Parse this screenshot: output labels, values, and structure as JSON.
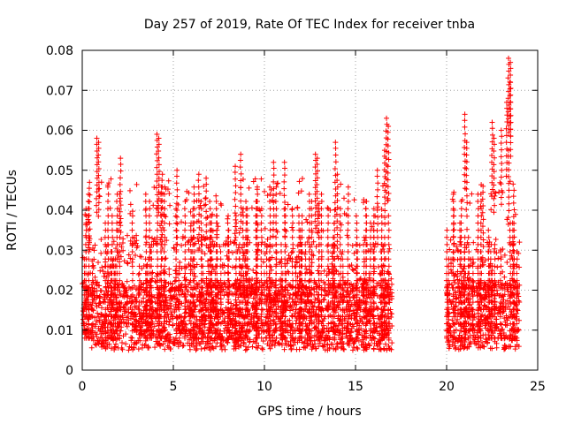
{
  "chart_data": {
    "type": "scatter",
    "title": "Day 257 of 2019, Rate Of TEC Index for receiver tnba",
    "xlabel": "GPS time / hours",
    "ylabel": "ROTI / TECUs",
    "xlim": [
      0,
      25
    ],
    "ylim": [
      0,
      0.08
    ],
    "x_ticks": [
      0,
      5,
      10,
      15,
      20,
      25
    ],
    "x_tick_labels": [
      "0",
      "5",
      "10",
      "15",
      "20",
      "25"
    ],
    "y_ticks": [
      0,
      0.01,
      0.02,
      0.03,
      0.04,
      0.05,
      0.06,
      0.07,
      0.08
    ],
    "y_tick_labels": [
      "0",
      "0.01",
      "0.02",
      "0.03",
      "0.04",
      "0.05",
      "0.06",
      "0.07",
      "0.08"
    ],
    "grid": true,
    "marker": "+",
    "marker_color": "#ff0000",
    "series": [
      {
        "name": "ROTI",
        "segments": [
          {
            "x_start": 0.0,
            "x_end": 17.0,
            "base_low": 0.005,
            "base_high": 0.022
          },
          {
            "x_start": 20.0,
            "x_end": 24.0,
            "base_low": 0.005,
            "base_high": 0.022
          }
        ],
        "spikes": [
          {
            "x": 0.8,
            "y": 0.058
          },
          {
            "x": 0.9,
            "y": 0.057
          },
          {
            "x": 0.4,
            "y": 0.047
          },
          {
            "x": 2.1,
            "y": 0.053
          },
          {
            "x": 4.1,
            "y": 0.059
          },
          {
            "x": 4.2,
            "y": 0.058
          },
          {
            "x": 4.4,
            "y": 0.049
          },
          {
            "x": 5.2,
            "y": 0.05
          },
          {
            "x": 6.4,
            "y": 0.049
          },
          {
            "x": 6.8,
            "y": 0.048
          },
          {
            "x": 8.4,
            "y": 0.051
          },
          {
            "x": 8.7,
            "y": 0.054
          },
          {
            "x": 10.5,
            "y": 0.052
          },
          {
            "x": 11.1,
            "y": 0.052
          },
          {
            "x": 12.8,
            "y": 0.054
          },
          {
            "x": 12.9,
            "y": 0.053
          },
          {
            "x": 13.9,
            "y": 0.057
          },
          {
            "x": 14.0,
            "y": 0.049
          },
          {
            "x": 16.2,
            "y": 0.05
          },
          {
            "x": 16.7,
            "y": 0.063
          },
          {
            "x": 16.8,
            "y": 0.061
          },
          {
            "x": 16.6,
            "y": 0.055
          },
          {
            "x": 20.4,
            "y": 0.04
          },
          {
            "x": 21.0,
            "y": 0.064
          },
          {
            "x": 21.1,
            "y": 0.057
          },
          {
            "x": 22.0,
            "y": 0.046
          },
          {
            "x": 22.5,
            "y": 0.062
          },
          {
            "x": 22.6,
            "y": 0.058
          },
          {
            "x": 23.4,
            "y": 0.078
          },
          {
            "x": 23.5,
            "y": 0.077
          },
          {
            "x": 23.5,
            "y": 0.072
          },
          {
            "x": 23.3,
            "y": 0.067
          },
          {
            "x": 23.4,
            "y": 0.055
          },
          {
            "x": 23.0,
            "y": 0.06
          },
          {
            "x": 23.7,
            "y": 0.045
          }
        ]
      }
    ]
  }
}
